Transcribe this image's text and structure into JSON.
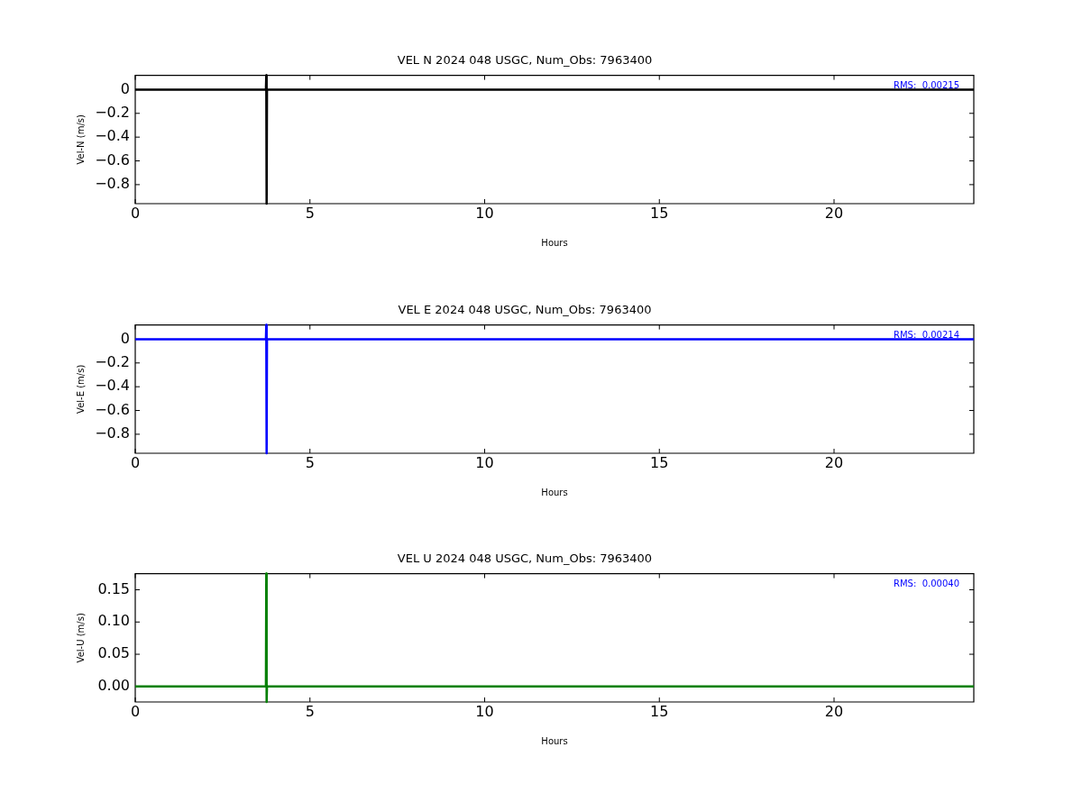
{
  "chart_data": [
    {
      "type": "line",
      "title": "VEL N 2024 048 USGC, Num_Obs: 7963400",
      "xlabel": "Hours",
      "ylabel": "Vel-N (m/s)",
      "annotations": [
        "RMS:  0.00215"
      ],
      "xlim": [
        0,
        24
      ],
      "ylim": [
        -0.96,
        0.12
      ],
      "xticks": [
        0,
        5,
        10,
        15,
        20
      ],
      "yticks": [
        {
          "value": -0.8,
          "label": "−0.8"
        },
        {
          "value": -0.6,
          "label": "−0.6"
        },
        {
          "value": -0.4,
          "label": "−0.4"
        },
        {
          "value": -0.2,
          "label": "−0.2"
        },
        0.0
      ],
      "legend": false,
      "series": [
        {
          "color": "#000000",
          "x": [
            0,
            3.74,
            3.75,
            3.76,
            3.77,
            24
          ],
          "values": [
            0,
            0,
            0.12,
            -0.96,
            0,
            0
          ]
        }
      ]
    },
    {
      "type": "line",
      "title": "VEL E 2024 048 USGC, Num_Obs: 7963400",
      "xlabel": "Hours",
      "ylabel": "Vel-E (m/s)",
      "annotations": [
        "RMS:  0.00214"
      ],
      "xlim": [
        0,
        24
      ],
      "ylim": [
        -0.96,
        0.12
      ],
      "xticks": [
        0,
        5,
        10,
        15,
        20
      ],
      "yticks": [
        {
          "value": -0.8,
          "label": "−0.8"
        },
        {
          "value": -0.6,
          "label": "−0.6"
        },
        {
          "value": -0.4,
          "label": "−0.4"
        },
        {
          "value": -0.2,
          "label": "−0.2"
        },
        0.0
      ],
      "legend": false,
      "series": [
        {
          "color": "#0000ff",
          "x": [
            0,
            3.74,
            3.75,
            3.76,
            3.77,
            24
          ],
          "values": [
            0,
            0,
            0.12,
            -0.96,
            0,
            0
          ]
        }
      ]
    },
    {
      "type": "line",
      "title": "VEL U 2024 048 USGC, Num_Obs: 7963400",
      "xlabel": "Hours",
      "ylabel": "Vel-U (m/s)",
      "annotations": [
        "RMS:  0.00040"
      ],
      "xlim": [
        0,
        24
      ],
      "ylim": [
        -0.024,
        0.175
      ],
      "xticks": [
        0,
        5,
        10,
        15,
        20
      ],
      "yticks": [
        {
          "value": 0.0,
          "label": "0.00"
        },
        {
          "value": 0.05,
          "label": "0.05"
        },
        {
          "value": 0.1,
          "label": "0.10"
        },
        {
          "value": 0.15,
          "label": "0.15"
        }
      ],
      "legend": false,
      "series": [
        {
          "color": "#008000",
          "x": [
            0,
            3.74,
            3.75,
            3.76,
            3.77,
            24
          ],
          "values": [
            0,
            0,
            0.175,
            -0.024,
            0,
            0
          ]
        }
      ]
    }
  ]
}
